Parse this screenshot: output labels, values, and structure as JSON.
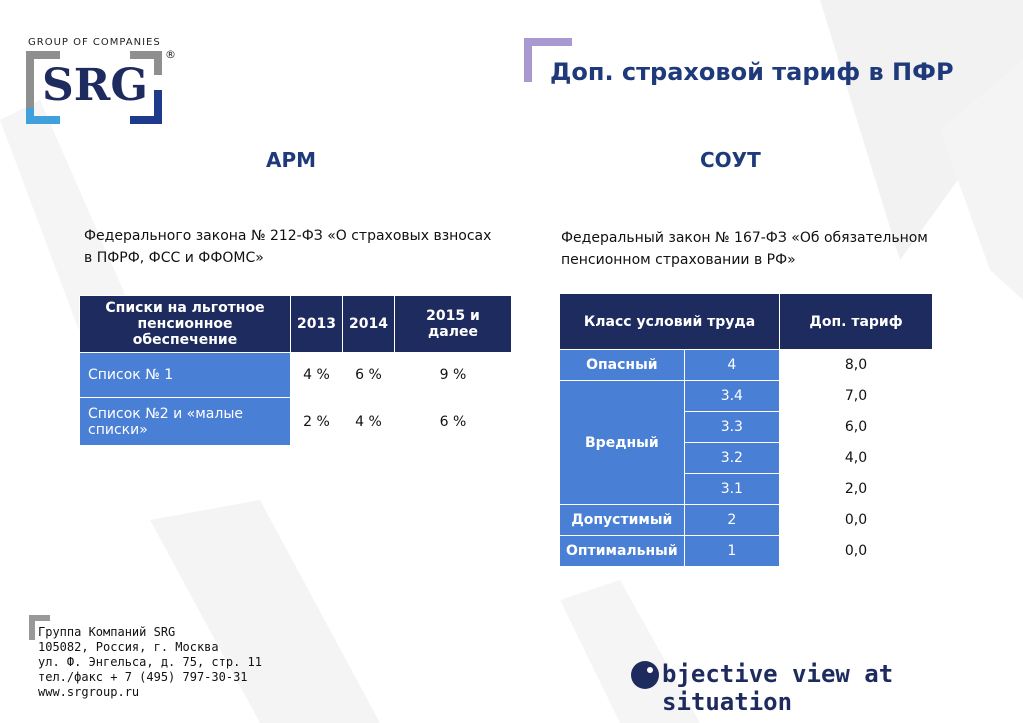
{
  "logo": {
    "group": "GROUP OF COMPANIES",
    "name": "SRG",
    "registered": "®"
  },
  "title": "Доп. страховой тариф в ПФР",
  "left": {
    "heading": "АРМ",
    "law": "Федерального закона № 212-ФЗ «О страховых взносах в ПФРФ, ФСС и ФФОМС»",
    "table": {
      "headers": [
        "Списки на льготное пенсионное обеспечение",
        "2013",
        "2014",
        "2015 и далее"
      ],
      "rows": [
        [
          "Список № 1",
          "4 %",
          "6 %",
          "9 %"
        ],
        [
          "Список №2 и «малые списки»",
          "2 %",
          "4 %",
          "6 %"
        ]
      ]
    }
  },
  "right": {
    "heading": "СОУТ",
    "law": "Федеральный закон № 167-ФЗ «Об обязательном пенсионном страховании в РФ»",
    "table": {
      "headers": [
        "Класс условий труда",
        "Доп. тариф"
      ],
      "groups": [
        {
          "name": "Опасный",
          "rows": [
            [
              "4",
              "8,0"
            ]
          ]
        },
        {
          "name": "Вредный",
          "rows": [
            [
              "3.4",
              "7,0"
            ],
            [
              "3.3",
              "6,0"
            ],
            [
              "3.2",
              "4,0"
            ],
            [
              "3.1",
              "2,0"
            ]
          ]
        },
        {
          "name": "Допустимый",
          "rows": [
            [
              "2",
              "0,0"
            ]
          ]
        },
        {
          "name": "Оптимальный",
          "rows": [
            [
              "1",
              "0,0"
            ]
          ]
        }
      ]
    }
  },
  "footer": {
    "lines": [
      "Группа Компаний SRG",
      "105082, Россия, г. Москва",
      "ул. Ф. Энгельса, д. 75, стр. 11",
      "тел./факс  + 7 (495) 797-30-31",
      "www.srgroup.ru"
    ],
    "slogan": "bjective view at situation"
  }
}
